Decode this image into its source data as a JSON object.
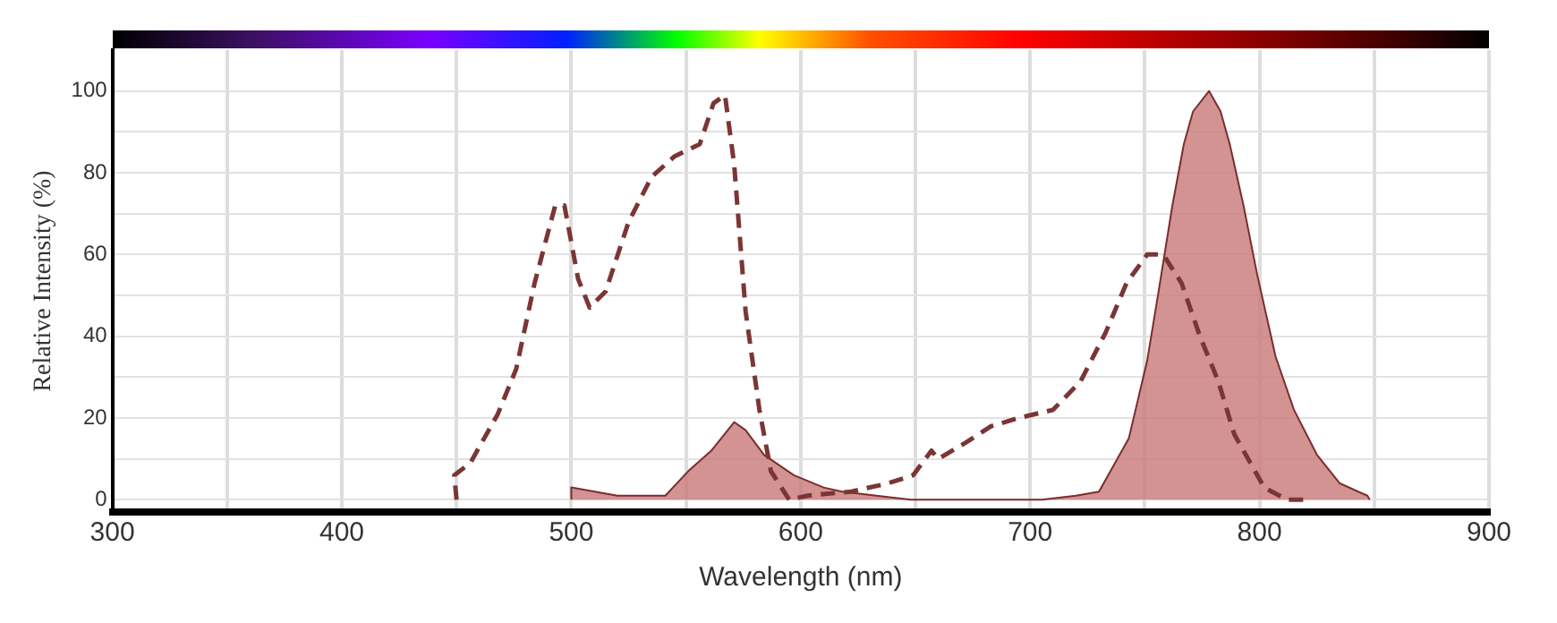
{
  "chart_data": {
    "type": "line",
    "xlabel": "Wavelength (nm)",
    "ylabel": "Relative Intensity (%)",
    "xlim": [
      300,
      900
    ],
    "xticks": [
      300,
      {
        "value": 350,
        "label": null
      },
      400,
      {
        "value": 450,
        "label": null
      },
      500,
      {
        "value": 550,
        "label": null
      },
      600,
      {
        "value": 650,
        "label": null
      },
      700,
      {
        "value": 750,
        "label": null
      },
      800,
      {
        "value": 850,
        "label": null
      },
      900
    ],
    "ylim": [
      -3,
      110
    ],
    "yticks": [
      0,
      {
        "value": 10,
        "label": null
      },
      20,
      {
        "value": 30,
        "label": null
      },
      40,
      {
        "value": 50,
        "label": null
      },
      60,
      {
        "value": 70,
        "label": null
      },
      80,
      {
        "value": 90,
        "label": null
      },
      100
    ],
    "grid": true,
    "legend": false,
    "series": [
      {
        "line_style": "dashed",
        "color": "#7b3535",
        "x": [
          450,
          449,
          456,
          468,
          476,
          484,
          493,
          497,
          503,
          508,
          515,
          525,
          535,
          545,
          556,
          562,
          567,
          571,
          576,
          582,
          587,
          595,
          603,
          622,
          638,
          649,
          657,
          660,
          672,
          683,
          695,
          710,
          722,
          733,
          742,
          751,
          758,
          766,
          774,
          782,
          789,
          795,
          802,
          812,
          820
        ],
        "values": [
          0,
          6,
          9,
          21,
          32,
          53,
          72,
          72,
          54,
          47,
          51,
          68,
          79,
          84,
          87,
          97,
          99,
          82,
          46,
          22,
          7,
          0,
          1,
          2,
          4,
          6,
          12,
          10,
          14,
          18,
          20,
          22,
          29,
          41,
          53,
          60,
          60,
          53,
          40,
          29,
          16,
          10,
          3,
          0,
          0
        ]
      },
      {
        "type": "area",
        "line_style": "solid",
        "color": "#c97b7b",
        "x": [
          500,
          500,
          520,
          530,
          541,
          551,
          561,
          571,
          576,
          584,
          597,
          610,
          618,
          648,
          674,
          705,
          720,
          730,
          743,
          751,
          756,
          762,
          767,
          771,
          778,
          783,
          787,
          793,
          799,
          807,
          815,
          825,
          835,
          847,
          848
        ],
        "values": [
          0,
          3,
          1,
          1,
          1,
          7,
          12,
          19,
          17,
          11,
          6,
          3,
          2,
          0,
          0,
          0,
          1,
          2,
          15,
          34,
          51,
          72,
          87,
          95,
          100,
          95,
          87,
          72,
          55,
          35,
          22,
          11,
          4,
          1,
          0
        ]
      }
    ]
  }
}
